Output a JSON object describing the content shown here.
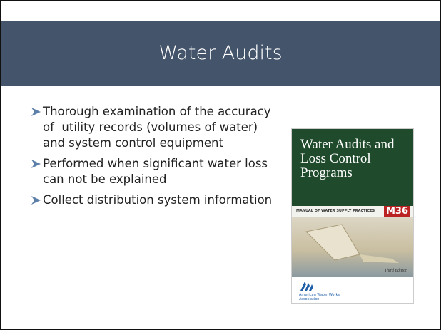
{
  "header": {
    "title": "Water Audits"
  },
  "bullets": [
    "Thorough examination of the accuracy of  utility records (volumes of water) and system control equipment",
    "Performed when significant water loss can not be explained",
    "Collect distribution system information"
  ],
  "book": {
    "title": "Water Audits and Loss Control Programs",
    "series": "MANUAL OF WATER SUPPLY PRACTICES",
    "number": "M36",
    "edition": "Third Edition",
    "publisher": "American Water Works Association"
  }
}
